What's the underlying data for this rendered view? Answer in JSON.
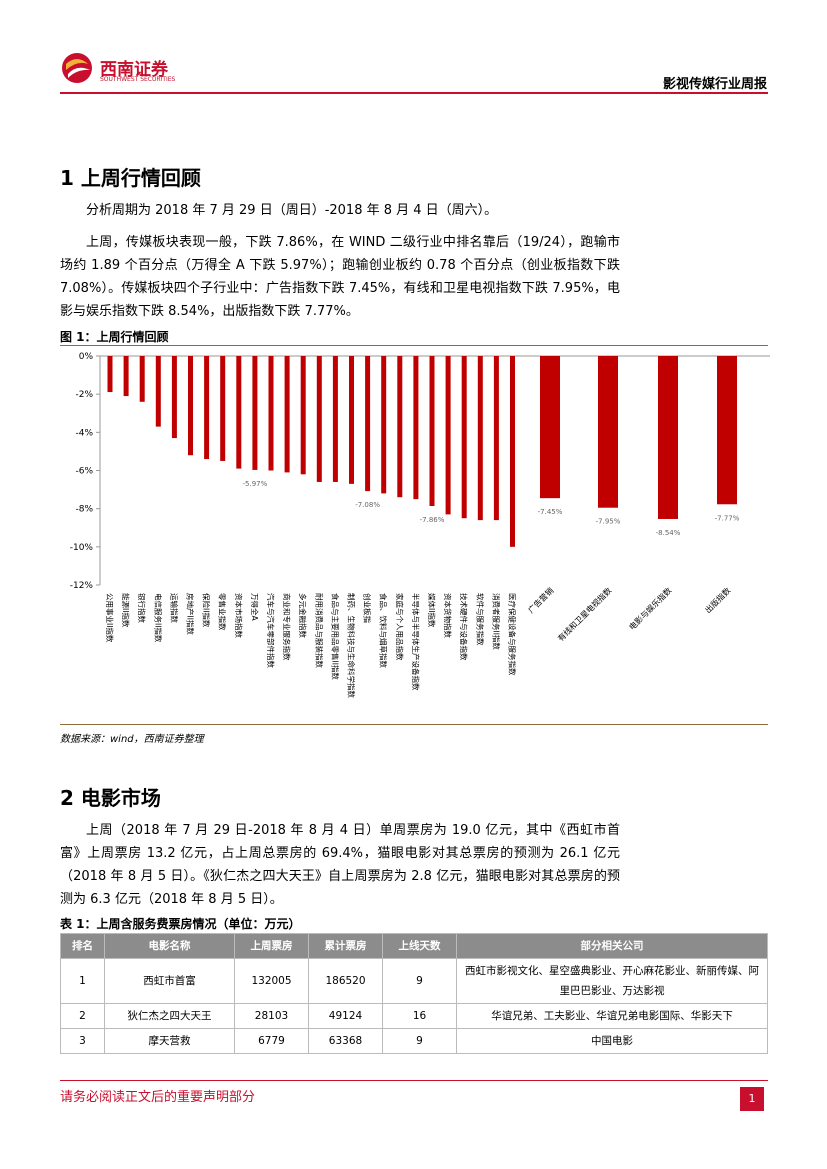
{
  "header": {
    "logo_cn": "西南证券",
    "logo_en": "SOUTHWEST SECURITIES",
    "report": "影视传媒行业周报"
  },
  "section1": {
    "title": "1 上周行情回顾",
    "paragraphs": [
      "分析周期为 2018 年 7 月 29 日（周日）-2018 年 8 月 4 日（周六）。",
      "上周，传媒板块表现一般，下跌 7.86%，在 WIND 二级行业中排名靠后（19/24），跑输市场约 1.89 个百分点（万得全 A 下跌 5.97%）；跑输创业板约 0.78 个百分点（创业板指数下跌 7.08%）。传媒板块四个子行业中：广告指数下跌 7.45%，有线和卫星电视指数下跌 7.95%，电影与娱乐指数下跌 8.54%，出版指数下跌 7.77%。"
    ]
  },
  "figure1": {
    "title": "图 1：上周行情回顾",
    "source": "数据来源：wind，西南证券整理"
  },
  "chart_data": {
    "type": "bar",
    "color": "#c00000",
    "categories": [
      "公用事业II指数",
      "能源II指数",
      "银行指数",
      "电信服务II指数",
      "运输指数",
      "房地产II指数",
      "保险II指数",
      "零售业指数",
      "资本市场指数",
      "万得全A",
      "汽车与汽车零部件指数",
      "商业和专业服务指数",
      "多元金融指数",
      "耐用消费品与服装指数",
      "食品与主要用品零售II指数",
      "制药、生物科技与生命科学指数",
      "创业板指",
      "食品、饮料与烟草指数",
      "家庭与个人用品指数",
      "半导体与半导体生产设备指数",
      "媒体II指数",
      "资本货物指数",
      "技术硬件与设备指数",
      "软件与服务指数",
      "消费者服务II指数",
      "医疗保健设备与服务指数",
      "广告营销",
      "有线和卫星电视指数",
      "电影与娱乐指数",
      "出版指数"
    ],
    "values": [
      -1.89,
      -2.1,
      -2.4,
      -3.7,
      -4.3,
      -5.2,
      -5.4,
      -5.5,
      -5.9,
      -5.97,
      -6.0,
      -6.1,
      -6.2,
      -6.6,
      -6.6,
      -6.7,
      -7.08,
      -7.2,
      -7.4,
      -7.5,
      -7.86,
      -8.3,
      -8.5,
      -8.6,
      -8.6,
      -10.0,
      -7.45,
      -7.95,
      -8.54,
      -7.77
    ],
    "value_labels": [
      null,
      null,
      null,
      null,
      null,
      null,
      null,
      null,
      null,
      "-5.97%",
      null,
      null,
      null,
      null,
      null,
      null,
      "-7.08%",
      null,
      null,
      null,
      "-7.86%",
      null,
      null,
      null,
      null,
      null,
      "-7.45%",
      "-7.95%",
      "-8.54%",
      "-7.77%"
    ],
    "ylim": [
      -12,
      0
    ],
    "yticks": [
      {
        "value": 0,
        "label": "0%"
      },
      {
        "value": -2,
        "label": "-2%"
      },
      {
        "value": -4,
        "label": "-4%"
      },
      {
        "value": -6,
        "label": "-6%"
      },
      {
        "value": -8,
        "label": "-8%"
      },
      {
        "value": -10,
        "label": "-10%"
      },
      {
        "value": -12,
        "label": "-12%"
      }
    ],
    "grid": false
  },
  "section2": {
    "title": "2 电影市场",
    "paragraphs": [
      "上周（2018 年 7 月 29 日-2018 年 8 月 4 日）单周票房为 19.0 亿元，其中《西虹市首富》上周票房 13.2 亿元，占上周总票房的 69.4%，猫眼电影对其总票房的预测为 26.1 亿元（2018 年 8 月 5 日）。《狄仁杰之四大天王》自上周票房为 2.8 亿元，猫眼电影对其总票房的预测为 6.3 亿元（2018 年 8 月 5 日）。"
    ]
  },
  "table1": {
    "title": "表 1：上周含服务费票房情况（单位：万元）",
    "header": [
      "排名",
      "电影名称",
      "上周票房",
      "累计票房",
      "上线天数",
      "部分相关公司"
    ],
    "rows": [
      [
        "1",
        "西虹市首富",
        "132005",
        "186520",
        "9",
        "西虹市影视文化、星空盛典影业、开心麻花影业、新丽传媒、阿里巴巴影业、万达影视"
      ],
      [
        "2",
        "狄仁杰之四大天王",
        "28103",
        "49124",
        "16",
        "华谊兄弟、工夫影业、华谊兄弟电影国际、华影天下"
      ],
      [
        "3",
        "摩天营救",
        "6779",
        "63368",
        "9",
        "中国电影"
      ]
    ]
  },
  "footer": {
    "disclaimer": "请务必阅读正文后的重要声明部分",
    "page": "1"
  }
}
